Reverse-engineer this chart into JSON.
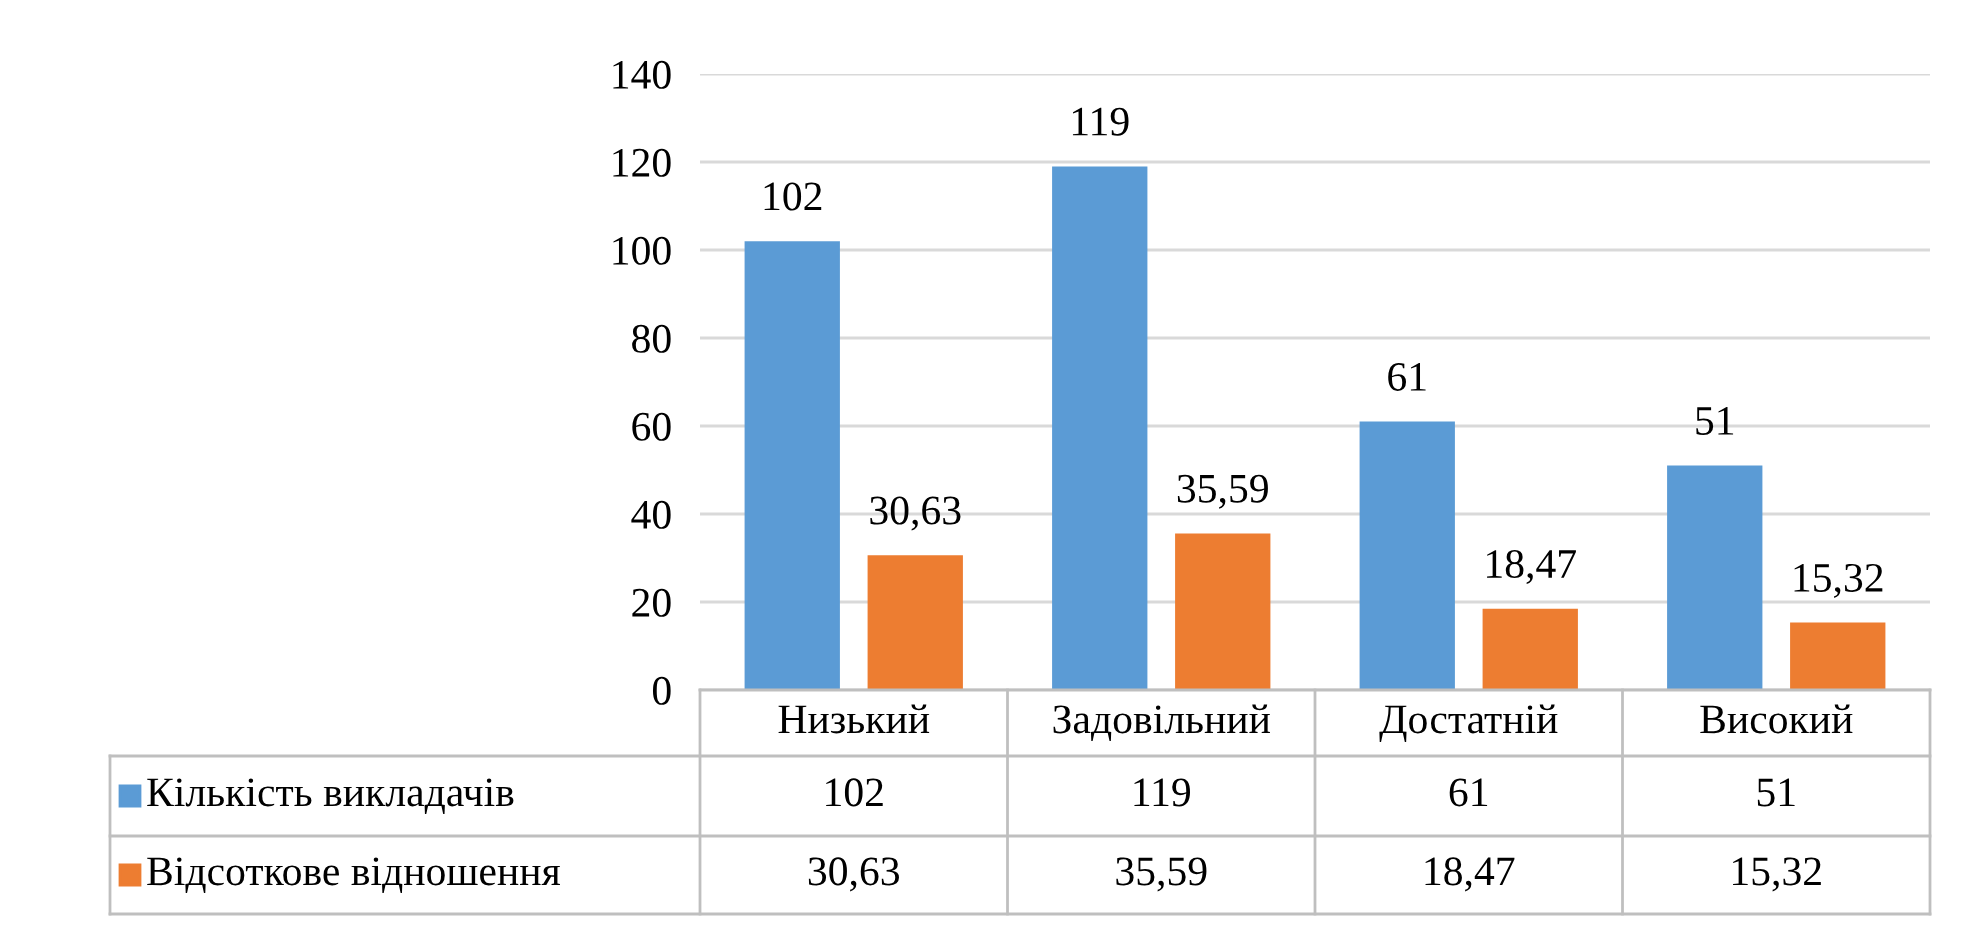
{
  "chart_data": {
    "type": "bar",
    "categories": [
      "Низький",
      "Задовільний",
      "Достатній",
      "Високий"
    ],
    "series": [
      {
        "name": "Кількість викладачів",
        "color": "#5b9bd5",
        "values": [
          102,
          119,
          61,
          51
        ],
        "value_labels": [
          "102",
          "119",
          "61",
          "51"
        ]
      },
      {
        "name": "Відсоткове відношення",
        "color": "#ed7d31",
        "values": [
          30.63,
          35.59,
          18.47,
          15.32
        ],
        "value_labels": [
          "30,63",
          "35,59",
          "18,47",
          "15,32"
        ]
      }
    ],
    "ylim": [
      0,
      140
    ],
    "yticks": [
      0,
      20,
      40,
      60,
      80,
      100,
      120,
      140
    ],
    "grid": "y",
    "legend": "bottom"
  }
}
